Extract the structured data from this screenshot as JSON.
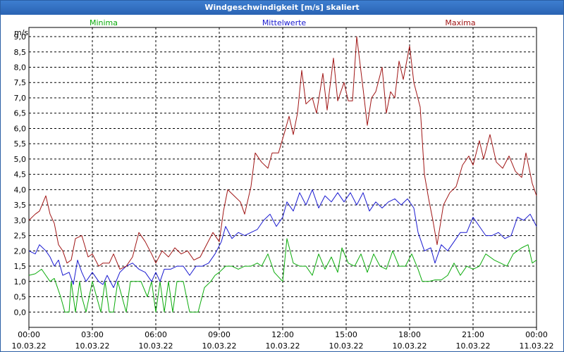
{
  "window": {
    "title": "Windgeschwindigkeit [m/s] skaliert"
  },
  "chart_data": {
    "type": "line",
    "title": "Windgeschwindigkeit [m/s] skaliert",
    "ylabel": "m/s",
    "ylim": [
      -0.5,
      9.3
    ],
    "yticks": [
      0,
      0.5,
      1,
      1.5,
      2,
      2.5,
      3,
      3.5,
      4,
      4.5,
      5,
      5.5,
      6,
      6.5,
      7,
      7.5,
      8,
      8.5,
      9
    ],
    "ytick_labels": [
      "0,0",
      "0,5",
      "1,0",
      "1,5",
      "2,0",
      "2,5",
      "3,0",
      "3,5",
      "4,0",
      "4,5",
      "5,0",
      "5,5",
      "6,0",
      "6,5",
      "7,0",
      "7,5",
      "8,0",
      "8,5",
      "9,0"
    ],
    "xlim": [
      0,
      24
    ],
    "xticks": [
      0,
      3,
      6,
      9,
      12,
      15,
      18,
      21,
      24
    ],
    "xtick_times": [
      "00:00",
      "03:00",
      "06:00",
      "09:00",
      "12:00",
      "15:00",
      "18:00",
      "21:00",
      "00:00"
    ],
    "xtick_dates": [
      "10.03.22",
      "10.03.22",
      "10.03.22",
      "10.03.22",
      "10.03.22",
      "10.03.22",
      "10.03.22",
      "10.03.22",
      "11.03.22"
    ],
    "grid": true,
    "legend": [
      "Minima",
      "Mittelwerte",
      "Maxima"
    ],
    "x_unit": "hours since 10.03.22 00:00",
    "series": [
      {
        "name": "Minima",
        "color": "#0bab0b",
        "points": [
          [
            0,
            1.2
          ],
          [
            0.3,
            1.25
          ],
          [
            0.6,
            1.4
          ],
          [
            0.8,
            1.2
          ],
          [
            1.0,
            1.0
          ],
          [
            1.2,
            1.1
          ],
          [
            1.5,
            0.5
          ],
          [
            1.7,
            0.0
          ],
          [
            1.9,
            0.0
          ],
          [
            2.0,
            1.0
          ],
          [
            2.2,
            0.0
          ],
          [
            2.4,
            1.0
          ],
          [
            2.5,
            0.5
          ],
          [
            2.7,
            0.0
          ],
          [
            3.0,
            1.0
          ],
          [
            3.2,
            0.5
          ],
          [
            3.4,
            0.0
          ],
          [
            3.6,
            1.0
          ],
          [
            3.8,
            0.0
          ],
          [
            4.0,
            0.0
          ],
          [
            4.2,
            1.0
          ],
          [
            4.4,
            0.5
          ],
          [
            4.6,
            0.0
          ],
          [
            4.8,
            1.0
          ],
          [
            5.0,
            1.0
          ],
          [
            5.3,
            1.0
          ],
          [
            5.6,
            0.5
          ],
          [
            5.8,
            1.0
          ],
          [
            6.0,
            0.0
          ],
          [
            6.2,
            1.0
          ],
          [
            6.4,
            0.0
          ],
          [
            6.6,
            1.0
          ],
          [
            6.8,
            0.0
          ],
          [
            7.0,
            1.0
          ],
          [
            7.3,
            1.0
          ],
          [
            7.6,
            0.0
          ],
          [
            7.8,
            0.0
          ],
          [
            8.0,
            0.0
          ],
          [
            8.3,
            0.8
          ],
          [
            8.6,
            1.0
          ],
          [
            8.8,
            1.2
          ],
          [
            9.0,
            1.3
          ],
          [
            9.3,
            1.5
          ],
          [
            9.6,
            1.5
          ],
          [
            9.9,
            1.4
          ],
          [
            10.2,
            1.5
          ],
          [
            10.5,
            1.5
          ],
          [
            10.8,
            1.6
          ],
          [
            11.0,
            1.5
          ],
          [
            11.3,
            1.9
          ],
          [
            11.6,
            1.3
          ],
          [
            12.0,
            1.0
          ],
          [
            12.2,
            2.4
          ],
          [
            12.5,
            1.6
          ],
          [
            12.8,
            1.5
          ],
          [
            13.1,
            1.5
          ],
          [
            13.4,
            1.2
          ],
          [
            13.7,
            1.9
          ],
          [
            14.0,
            1.4
          ],
          [
            14.3,
            1.8
          ],
          [
            14.6,
            1.3
          ],
          [
            14.8,
            2.1
          ],
          [
            15.1,
            1.6
          ],
          [
            15.4,
            1.5
          ],
          [
            15.7,
            1.9
          ],
          [
            16.0,
            1.3
          ],
          [
            16.3,
            1.9
          ],
          [
            16.6,
            1.5
          ],
          [
            16.9,
            1.4
          ],
          [
            17.2,
            2.0
          ],
          [
            17.5,
            1.5
          ],
          [
            17.8,
            1.5
          ],
          [
            18.1,
            1.9
          ],
          [
            18.4,
            1.4
          ],
          [
            18.6,
            1.0
          ],
          [
            18.9,
            1.0
          ],
          [
            19.2,
            1.05
          ],
          [
            19.5,
            1.05
          ],
          [
            19.8,
            1.2
          ],
          [
            20.1,
            1.6
          ],
          [
            20.4,
            1.2
          ],
          [
            20.7,
            1.5
          ],
          [
            21.0,
            1.4
          ],
          [
            21.3,
            1.5
          ],
          [
            21.6,
            1.9
          ],
          [
            22.0,
            1.7
          ],
          [
            22.3,
            1.6
          ],
          [
            22.6,
            1.5
          ],
          [
            22.9,
            1.9
          ],
          [
            23.3,
            2.1
          ],
          [
            23.6,
            2.2
          ],
          [
            23.8,
            1.6
          ],
          [
            24.0,
            1.7
          ]
        ]
      },
      {
        "name": "Mittelwerte",
        "color": "#1a1ad0",
        "points": [
          [
            0,
            2.0
          ],
          [
            0.3,
            1.9
          ],
          [
            0.5,
            2.2
          ],
          [
            0.8,
            2.0
          ],
          [
            1.0,
            1.8
          ],
          [
            1.2,
            1.5
          ],
          [
            1.4,
            1.7
          ],
          [
            1.6,
            1.2
          ],
          [
            1.9,
            1.3
          ],
          [
            2.1,
            0.9
          ],
          [
            2.3,
            1.7
          ],
          [
            2.5,
            1.3
          ],
          [
            2.7,
            1.0
          ],
          [
            3.0,
            1.3
          ],
          [
            3.3,
            1.0
          ],
          [
            3.5,
            0.9
          ],
          [
            3.7,
            1.2
          ],
          [
            4.0,
            0.8
          ],
          [
            4.3,
            1.3
          ],
          [
            4.6,
            1.5
          ],
          [
            4.9,
            1.6
          ],
          [
            5.2,
            1.4
          ],
          [
            5.5,
            1.3
          ],
          [
            5.8,
            1.0
          ],
          [
            6.0,
            1.3
          ],
          [
            6.2,
            1.0
          ],
          [
            6.4,
            1.4
          ],
          [
            6.7,
            1.4
          ],
          [
            7.0,
            1.5
          ],
          [
            7.3,
            1.5
          ],
          [
            7.6,
            1.2
          ],
          [
            7.9,
            1.5
          ],
          [
            8.2,
            1.5
          ],
          [
            8.5,
            1.6
          ],
          [
            8.8,
            1.9
          ],
          [
            9.1,
            2.3
          ],
          [
            9.3,
            2.8
          ],
          [
            9.6,
            2.4
          ],
          [
            9.9,
            2.6
          ],
          [
            10.2,
            2.5
          ],
          [
            10.5,
            2.6
          ],
          [
            10.8,
            2.7
          ],
          [
            11.1,
            3.0
          ],
          [
            11.4,
            3.2
          ],
          [
            11.7,
            2.8
          ],
          [
            12.0,
            3.1
          ],
          [
            12.2,
            3.6
          ],
          [
            12.5,
            3.3
          ],
          [
            12.8,
            3.9
          ],
          [
            13.1,
            3.5
          ],
          [
            13.4,
            4.0
          ],
          [
            13.7,
            3.4
          ],
          [
            14.0,
            3.8
          ],
          [
            14.3,
            3.6
          ],
          [
            14.6,
            3.9
          ],
          [
            14.9,
            3.6
          ],
          [
            15.2,
            3.9
          ],
          [
            15.5,
            3.5
          ],
          [
            15.8,
            3.9
          ],
          [
            16.1,
            3.3
          ],
          [
            16.4,
            3.6
          ],
          [
            16.7,
            3.4
          ],
          [
            17.0,
            3.6
          ],
          [
            17.3,
            3.7
          ],
          [
            17.6,
            3.5
          ],
          [
            17.9,
            3.7
          ],
          [
            18.2,
            3.4
          ],
          [
            18.4,
            2.6
          ],
          [
            18.7,
            2.0
          ],
          [
            19.0,
            2.1
          ],
          [
            19.2,
            1.6
          ],
          [
            19.5,
            2.2
          ],
          [
            19.8,
            2.0
          ],
          [
            20.1,
            2.3
          ],
          [
            20.4,
            2.6
          ],
          [
            20.7,
            2.6
          ],
          [
            21.0,
            3.1
          ],
          [
            21.3,
            2.8
          ],
          [
            21.6,
            2.5
          ],
          [
            21.9,
            2.5
          ],
          [
            22.2,
            2.6
          ],
          [
            22.5,
            2.4
          ],
          [
            22.8,
            2.5
          ],
          [
            23.1,
            3.1
          ],
          [
            23.4,
            3.0
          ],
          [
            23.7,
            3.2
          ],
          [
            24.0,
            2.8
          ]
        ]
      },
      {
        "name": "Maxima",
        "color": "#a01515",
        "points": [
          [
            0,
            3.0
          ],
          [
            0.3,
            3.2
          ],
          [
            0.5,
            3.3
          ],
          [
            0.8,
            3.8
          ],
          [
            1.0,
            3.2
          ],
          [
            1.2,
            2.9
          ],
          [
            1.4,
            2.2
          ],
          [
            1.6,
            2.0
          ],
          [
            1.8,
            1.6
          ],
          [
            2.0,
            1.7
          ],
          [
            2.2,
            2.4
          ],
          [
            2.5,
            2.5
          ],
          [
            2.8,
            1.8
          ],
          [
            3.0,
            1.9
          ],
          [
            3.3,
            1.5
          ],
          [
            3.5,
            1.6
          ],
          [
            3.8,
            1.6
          ],
          [
            4.0,
            1.9
          ],
          [
            4.3,
            1.4
          ],
          [
            4.6,
            1.5
          ],
          [
            4.9,
            1.8
          ],
          [
            5.2,
            2.6
          ],
          [
            5.5,
            2.3
          ],
          [
            5.8,
            1.9
          ],
          [
            6.0,
            1.6
          ],
          [
            6.3,
            2.0
          ],
          [
            6.6,
            1.8
          ],
          [
            6.9,
            2.1
          ],
          [
            7.2,
            1.9
          ],
          [
            7.5,
            2.0
          ],
          [
            7.8,
            1.7
          ],
          [
            8.1,
            1.8
          ],
          [
            8.4,
            2.2
          ],
          [
            8.7,
            2.6
          ],
          [
            9.0,
            2.3
          ],
          [
            9.2,
            3.3
          ],
          [
            9.4,
            4.0
          ],
          [
            9.7,
            3.8
          ],
          [
            10.0,
            3.6
          ],
          [
            10.2,
            3.2
          ],
          [
            10.5,
            4.1
          ],
          [
            10.7,
            5.2
          ],
          [
            11.0,
            4.9
          ],
          [
            11.3,
            4.7
          ],
          [
            11.5,
            5.2
          ],
          [
            11.8,
            5.2
          ],
          [
            12.1,
            5.9
          ],
          [
            12.3,
            6.4
          ],
          [
            12.5,
            5.8
          ],
          [
            12.7,
            6.5
          ],
          [
            12.9,
            7.9
          ],
          [
            13.1,
            6.8
          ],
          [
            13.4,
            7.0
          ],
          [
            13.6,
            6.5
          ],
          [
            13.9,
            7.8
          ],
          [
            14.1,
            6.6
          ],
          [
            14.4,
            8.3
          ],
          [
            14.6,
            6.9
          ],
          [
            14.9,
            7.5
          ],
          [
            15.1,
            6.9
          ],
          [
            15.3,
            6.9
          ],
          [
            15.5,
            9.0
          ],
          [
            15.8,
            7.3
          ],
          [
            16.0,
            6.1
          ],
          [
            16.2,
            7.0
          ],
          [
            16.4,
            7.2
          ],
          [
            16.7,
            8.0
          ],
          [
            16.9,
            6.5
          ],
          [
            17.1,
            7.2
          ],
          [
            17.3,
            7.0
          ],
          [
            17.5,
            8.2
          ],
          [
            17.7,
            7.6
          ],
          [
            18.0,
            8.7
          ],
          [
            18.2,
            7.5
          ],
          [
            18.5,
            6.7
          ],
          [
            18.7,
            4.5
          ],
          [
            18.9,
            3.7
          ],
          [
            19.1,
            3.0
          ],
          [
            19.3,
            2.2
          ],
          [
            19.6,
            3.5
          ],
          [
            19.9,
            3.9
          ],
          [
            20.2,
            4.1
          ],
          [
            20.5,
            4.8
          ],
          [
            20.8,
            5.1
          ],
          [
            21.0,
            4.8
          ],
          [
            21.3,
            5.6
          ],
          [
            21.5,
            5.0
          ],
          [
            21.8,
            5.8
          ],
          [
            22.1,
            4.9
          ],
          [
            22.4,
            4.7
          ],
          [
            22.7,
            5.1
          ],
          [
            23.0,
            4.6
          ],
          [
            23.3,
            4.4
          ],
          [
            23.5,
            5.2
          ],
          [
            23.8,
            4.2
          ],
          [
            24.0,
            3.8
          ]
        ]
      }
    ]
  }
}
